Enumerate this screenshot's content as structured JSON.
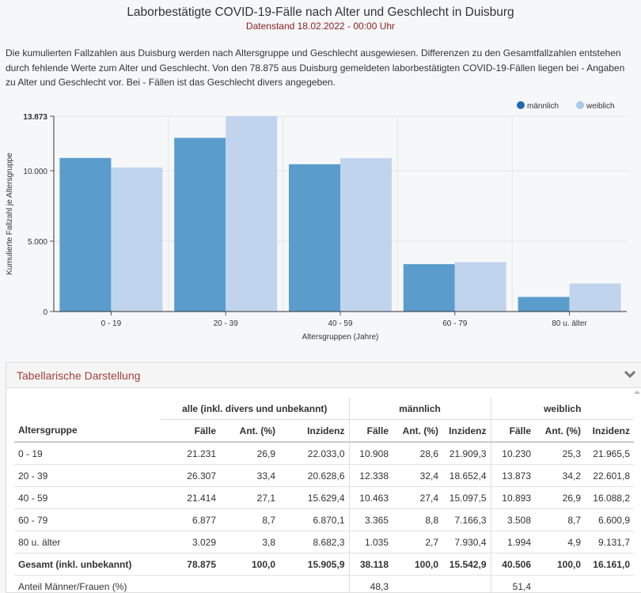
{
  "header": {
    "title": "Laborbestätigte COVID-19-Fälle nach Alter und Geschlecht in Duisburg",
    "subtitle": "Datenstand 18.02.2022 - 00:00 Uhr"
  },
  "description": [
    "Die kumulierten Fallzahlen aus Duisburg werden nach Altersgruppe und Geschlecht ausgewiesen. Differenzen zu den Gesamtfallzahlen entstehen",
    "durch fehlende Werte zum Alter und Geschlecht. Von den 78.875 aus Duisburg gemeldeten laborbestätigten COVID-19-Fällen liegen bei - Angaben",
    "zu Alter und Geschlecht vor. Bei - Fällen ist das Geschlecht divers angegeben."
  ],
  "chart_data": {
    "type": "bar",
    "categories": [
      "0 - 19",
      "20 - 39",
      "40 - 59",
      "60 - 79",
      "80 u. älter"
    ],
    "series": [
      {
        "name": "männlich",
        "values": [
          10908,
          12338,
          10463,
          3365,
          1035
        ],
        "color": "#5a9ccc"
      },
      {
        "name": "weiblich",
        "values": [
          10230,
          13873,
          10893,
          3508,
          1994
        ],
        "color": "#c1d4ee"
      }
    ],
    "xlabel": "Altersgruppen (Jahre)",
    "ylabel": "Kumulierte Fallzahl je Altersgruppe",
    "ylim": [
      0,
      13873
    ],
    "yticks": [
      0,
      5000,
      10000,
      13873
    ],
    "ytick_labels": [
      "0",
      "5.000",
      "10.000",
      "13.873"
    ],
    "legend_position": "top-right",
    "grid": true
  },
  "panel": {
    "title": "Tabellarische Darstellung",
    "toggle_icon": "chevron-down-icon"
  },
  "table": {
    "groups": [
      "alle (inkl. divers und unbekannt)",
      "männlich",
      "weiblich"
    ],
    "row_header": "Altersgruppe",
    "subheaders": [
      "Fälle",
      "Ant. (%)",
      "Inzidenz"
    ],
    "rows": [
      [
        "0 - 19",
        "21.231",
        "26,9",
        "22.033,0",
        "10.908",
        "28,6",
        "21.909,3",
        "10.230",
        "25,3",
        "21.965,5"
      ],
      [
        "20 - 39",
        "26.307",
        "33,4",
        "20.628,6",
        "12.338",
        "32,4",
        "18.652,4",
        "13.873",
        "34,2",
        "22.601,8"
      ],
      [
        "40 - 59",
        "21.414",
        "27,1",
        "15.629,4",
        "10.463",
        "27,4",
        "15.097,5",
        "10.893",
        "26,9",
        "16.088,2"
      ],
      [
        "60 - 79",
        "6.877",
        "8,7",
        "6.870,1",
        "3.365",
        "8,8",
        "7.166,3",
        "3.508",
        "8,7",
        "6.600,9"
      ],
      [
        "80 u. älter",
        "3.029",
        "3,8",
        "8.682,3",
        "1.035",
        "2,7",
        "7.930,4",
        "1.994",
        "4,9",
        "9.131,7"
      ]
    ],
    "total": [
      "Gesamt (inkl. unbekannt)",
      "78.875",
      "100,0",
      "15.905,9",
      "38.118",
      "100,0",
      "15.542,9",
      "40.506",
      "100,0",
      "16.161,0"
    ],
    "share": [
      "Anteil Männer/Frauen (%)",
      "",
      "",
      "",
      "48,3",
      "",
      "",
      "51,4",
      "",
      ""
    ]
  }
}
